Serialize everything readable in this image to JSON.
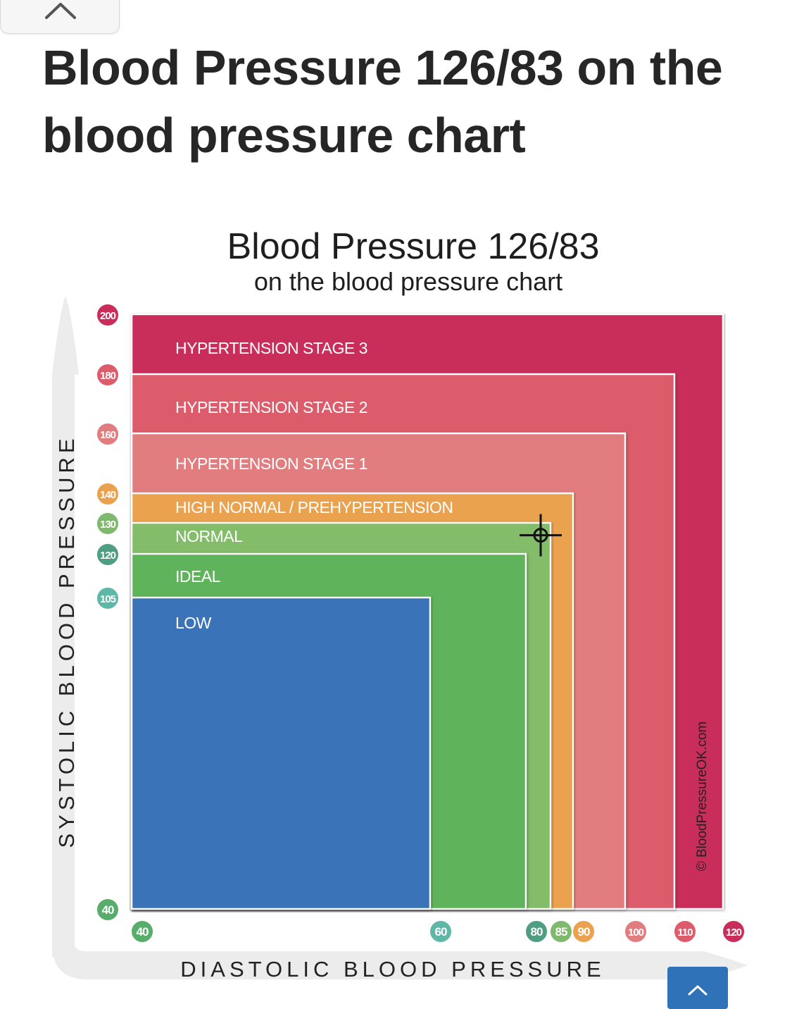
{
  "page": {
    "title": "Blood Pressure 126/83 on the blood pressure chart"
  },
  "icons": {
    "close": "chevron-up-icon",
    "scroll_top": "chevron-up-icon"
  },
  "chart_data": {
    "type": "area",
    "title": "Blood Pressure 126/83",
    "subtitle": "on the blood pressure chart",
    "xlabel": "DIASTOLIC BLOOD PRESSURE",
    "ylabel": "SYSTOLIC BLOOD PRESSURE",
    "credit": "© BloodPressureOK.com",
    "xlim": [
      40,
      120
    ],
    "ylim": [
      40,
      200
    ],
    "x_ticks": [
      40,
      60,
      80,
      85,
      90,
      100,
      110,
      120
    ],
    "y_ticks": [
      40,
      105,
      120,
      130,
      140,
      160,
      180,
      200
    ],
    "zones": [
      {
        "name": "HYPERTENSION STAGE 3",
        "max_systolic": 200,
        "max_diastolic": 120,
        "color": "#c92e5a"
      },
      {
        "name": "HYPERTENSION STAGE 2",
        "max_systolic": 180,
        "max_diastolic": 110,
        "color": "#dd5c6c"
      },
      {
        "name": "HYPERTENSION STAGE 1",
        "max_systolic": 160,
        "max_diastolic": 100,
        "color": "#e27d7f"
      },
      {
        "name": "HIGH NORMAL / PREHYPERTENSION",
        "max_systolic": 140,
        "max_diastolic": 90,
        "color": "#eba24f"
      },
      {
        "name": "NORMAL",
        "max_systolic": 130,
        "max_diastolic": 85,
        "color": "#83bd6a"
      },
      {
        "name": "IDEAL",
        "max_systolic": 120,
        "max_diastolic": 80,
        "color": "#5fb35a"
      },
      {
        "name": "LOW",
        "max_systolic": 105,
        "max_diastolic": 60,
        "color": "#3a73b7"
      }
    ],
    "marker": {
      "systolic": 126,
      "diastolic": 83
    },
    "y_tick_colors": {
      "40": "#58ad6b",
      "105": "#5fb7a7",
      "120": "#4f9e82",
      "130": "#7fb96d",
      "140": "#eba24f",
      "160": "#e27d7f",
      "180": "#dd5c6c",
      "200": "#c92e5a"
    },
    "x_tick_colors": {
      "40": "#58ad6b",
      "60": "#5fb7a7",
      "80": "#4f9e82",
      "85": "#7fb96d",
      "90": "#eba24f",
      "100": "#e27d7f",
      "110": "#dd5c6c",
      "120": "#c92e5a"
    }
  }
}
